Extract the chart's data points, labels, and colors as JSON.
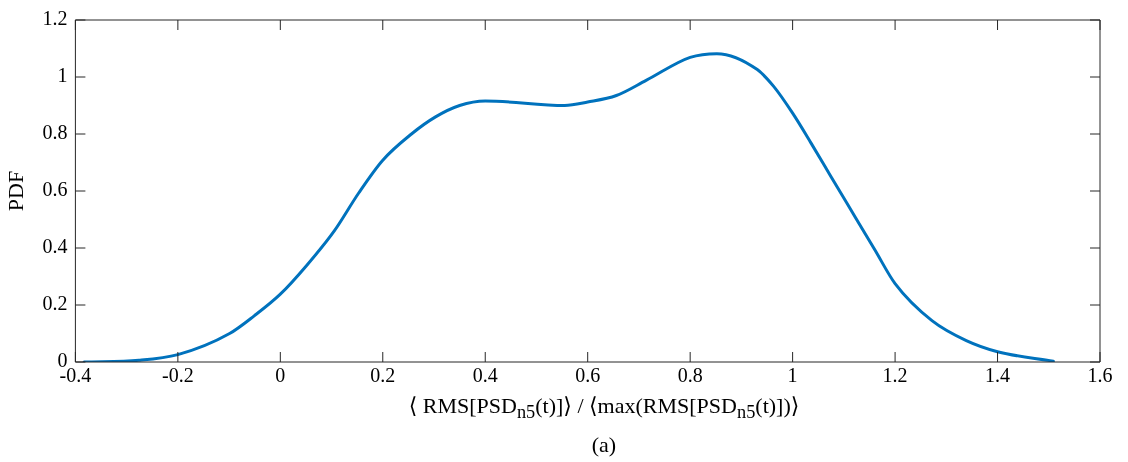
{
  "chart_data": {
    "type": "line",
    "xlabel": "⟨ RMS[PSD$_{n5}$(t)]⟩ / ⟨max(RMS[PSD$_{n5}$(t)])⟩",
    "ylabel": "PDF",
    "annotations": [
      "(a)"
    ],
    "x": [
      -0.383,
      -0.276,
      -0.2,
      -0.099,
      -0.051,
      0,
      0.051,
      0.105,
      0.153,
      0.2,
      0.256,
      0.303,
      0.35,
      0.4,
      0.555,
      0.6,
      0.656,
      0.714,
      0.8,
      0.852,
      0.931,
      0.963,
      1.0,
      1.036,
      1.075,
      1.122,
      1.161,
      1.2,
      1.272,
      1.339,
      1.4,
      1.509
    ],
    "series": [
      {
        "color": "#0072bd",
        "values": [
          0,
          0.006,
          0.026,
          0.1,
          0.162,
          0.238,
          0.338,
          0.459,
          0.593,
          0.708,
          0.8,
          0.86,
          0.9,
          0.916,
          0.9,
          0.912,
          0.935,
          0.988,
          1.069,
          1.082,
          1.026,
          0.967,
          0.873,
          0.768,
          0.65,
          0.509,
          0.392,
          0.275,
          0.145,
          0.075,
          0.036,
          0.003
        ]
      }
    ],
    "xlim": [
      -0.4,
      1.6
    ],
    "xticks": [
      -0.4,
      -0.2,
      0,
      0.2,
      0.4,
      0.6,
      0.8,
      1,
      1.2,
      1.4,
      1.6
    ],
    "ylim": [
      0,
      1.2
    ],
    "yticks": [
      0,
      0.2,
      0.4,
      0.6,
      0.8,
      1,
      1.2
    ],
    "marker": "none",
    "line_style": "solid"
  }
}
